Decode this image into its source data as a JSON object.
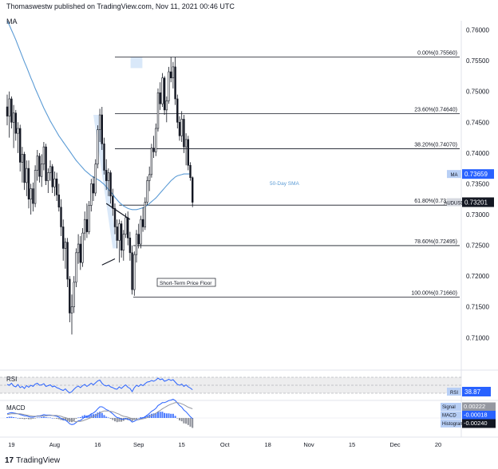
{
  "header": {
    "published": "Thomaswestw published on TradingView.com, Nov 11, 2021 00:46 UTC",
    "panel_label": "MA"
  },
  "footer": {
    "logo_mark": "17",
    "brand": "TradingView"
  },
  "colors": {
    "candle": "#131722",
    "sma": "#5b9bd5",
    "fib": "#131722",
    "fill": "#cfe2f7",
    "rsi": "#2962ff",
    "macd": "#2962ff",
    "signal": "#9598a1",
    "hist_pos": "#2962ff",
    "hist_neg": "#787b86",
    "badge_blue": "#2962ff",
    "badge_dark": "#131722"
  },
  "chart_data": {
    "type": "candlestick",
    "symbol": "AUDUSD",
    "ylim": [
      0.7055,
      0.7615
    ],
    "y_ticks": [
      "0.76000",
      "0.75500",
      "0.75000",
      "0.74500",
      "0.74000",
      "0.73500",
      "0.73000",
      "0.72500",
      "0.72000",
      "0.71500",
      "0.71000"
    ],
    "y_tick_values": [
      0.76,
      0.755,
      0.75,
      0.745,
      0.74,
      0.735,
      0.73,
      0.725,
      0.72,
      0.715,
      0.71
    ],
    "x_ticks": [
      "19",
      "Aug",
      "16",
      "Sep",
      "15",
      "Oct",
      "18",
      "Nov",
      "15",
      "Dec",
      "20"
    ],
    "x_tick_index": [
      2,
      22,
      42,
      61,
      81,
      101,
      121,
      140,
      160,
      180,
      200
    ],
    "candles": [
      [
        0.7475,
        0.7495,
        0.7445,
        0.746
      ],
      [
        0.746,
        0.75,
        0.7425,
        0.7488
      ],
      [
        0.7488,
        0.7492,
        0.744,
        0.745
      ],
      [
        0.745,
        0.7478,
        0.7408,
        0.7465
      ],
      [
        0.7465,
        0.747,
        0.742,
        0.7432
      ],
      [
        0.7432,
        0.745,
        0.74,
        0.744
      ],
      [
        0.744,
        0.7446,
        0.737,
        0.7385
      ],
      [
        0.7385,
        0.741,
        0.7352,
        0.7398
      ],
      [
        0.7398,
        0.7402,
        0.734,
        0.7352
      ],
      [
        0.7352,
        0.7388,
        0.733,
        0.7375
      ],
      [
        0.7375,
        0.7388,
        0.731,
        0.7325
      ],
      [
        0.7325,
        0.735,
        0.73,
        0.7342
      ],
      [
        0.7342,
        0.7352,
        0.7305,
        0.7318
      ],
      [
        0.7318,
        0.738,
        0.7312,
        0.7372
      ],
      [
        0.7372,
        0.7405,
        0.7355,
        0.7395
      ],
      [
        0.7395,
        0.74,
        0.7352,
        0.7362
      ],
      [
        0.7362,
        0.7398,
        0.7345,
        0.7382
      ],
      [
        0.7382,
        0.7418,
        0.7372,
        0.741
      ],
      [
        0.741,
        0.7415,
        0.7348,
        0.7355
      ],
      [
        0.7355,
        0.7375,
        0.7335,
        0.7368
      ],
      [
        0.7368,
        0.7388,
        0.7355,
        0.7378
      ],
      [
        0.7378,
        0.7382,
        0.7335,
        0.7345
      ],
      [
        0.7345,
        0.737,
        0.733,
        0.7358
      ],
      [
        0.7358,
        0.7368,
        0.7322,
        0.7332
      ],
      [
        0.7332,
        0.735,
        0.7305,
        0.7312
      ],
      [
        0.7312,
        0.7325,
        0.7265,
        0.728
      ],
      [
        0.728,
        0.7292,
        0.7225,
        0.7245
      ],
      [
        0.7245,
        0.7262,
        0.7212,
        0.7255
      ],
      [
        0.7255,
        0.7262,
        0.7182,
        0.7195
      ],
      [
        0.7195,
        0.72,
        0.7125,
        0.714
      ],
      [
        0.714,
        0.717,
        0.7105,
        0.715
      ],
      [
        0.715,
        0.72,
        0.714,
        0.719
      ],
      [
        0.719,
        0.7245,
        0.7182,
        0.7238
      ],
      [
        0.7238,
        0.7268,
        0.722,
        0.7252
      ],
      [
        0.7252,
        0.7265,
        0.721,
        0.7222
      ],
      [
        0.7222,
        0.7278,
        0.7215,
        0.727
      ],
      [
        0.727,
        0.7305,
        0.7258,
        0.7292
      ],
      [
        0.7292,
        0.7318,
        0.7262,
        0.7272
      ],
      [
        0.7272,
        0.7322,
        0.7268,
        0.7315
      ],
      [
        0.7315,
        0.7358,
        0.7305,
        0.735
      ],
      [
        0.735,
        0.7362,
        0.7322,
        0.7335
      ],
      [
        0.7335,
        0.739,
        0.733,
        0.7382
      ],
      [
        0.7382,
        0.7445,
        0.7375,
        0.7438
      ],
      [
        0.7438,
        0.7472,
        0.7418,
        0.7462
      ],
      [
        0.7462,
        0.7475,
        0.7405,
        0.7415
      ],
      [
        0.7415,
        0.7425,
        0.7365,
        0.7372
      ],
      [
        0.7372,
        0.739,
        0.734,
        0.7355
      ],
      [
        0.7355,
        0.7375,
        0.733,
        0.7368
      ],
      [
        0.7368,
        0.7372,
        0.7318,
        0.733
      ],
      [
        0.733,
        0.7342,
        0.7298,
        0.731
      ],
      [
        0.731,
        0.7318,
        0.7268,
        0.728
      ],
      [
        0.728,
        0.7292,
        0.7245,
        0.7258
      ],
      [
        0.7258,
        0.7292,
        0.7222,
        0.7285
      ],
      [
        0.7285,
        0.729,
        0.723,
        0.7242
      ],
      [
        0.7242,
        0.7275,
        0.7225,
        0.7268
      ],
      [
        0.7268,
        0.7302,
        0.7262,
        0.7295
      ],
      [
        0.7295,
        0.7305,
        0.725,
        0.7262
      ],
      [
        0.7262,
        0.7272,
        0.7225,
        0.7238
      ],
      [
        0.7238,
        0.725,
        0.717,
        0.7178
      ],
      [
        0.7178,
        0.724,
        0.7168,
        0.7235
      ],
      [
        0.7235,
        0.7275,
        0.7222,
        0.7268
      ],
      [
        0.7268,
        0.7285,
        0.7245,
        0.7252
      ],
      [
        0.7252,
        0.7298,
        0.7245,
        0.7292
      ],
      [
        0.7292,
        0.7312,
        0.7272,
        0.728
      ],
      [
        0.728,
        0.7328,
        0.7275,
        0.732
      ],
      [
        0.732,
        0.7362,
        0.7315,
        0.7355
      ],
      [
        0.7355,
        0.7378,
        0.7338,
        0.7365
      ],
      [
        0.7365,
        0.7415,
        0.736,
        0.7408
      ],
      [
        0.7408,
        0.7428,
        0.7392,
        0.7402
      ],
      [
        0.7402,
        0.7448,
        0.7395,
        0.744
      ],
      [
        0.744,
        0.7505,
        0.7435,
        0.7498
      ],
      [
        0.7498,
        0.7515,
        0.747,
        0.748
      ],
      [
        0.748,
        0.753,
        0.7475,
        0.7522
      ],
      [
        0.7522,
        0.7525,
        0.7462,
        0.747
      ],
      [
        0.747,
        0.7492,
        0.745,
        0.7485
      ],
      [
        0.7485,
        0.754,
        0.748,
        0.7532
      ],
      [
        0.7532,
        0.7556,
        0.7515,
        0.7522
      ],
      [
        0.7522,
        0.7548,
        0.7505,
        0.754
      ],
      [
        0.754,
        0.7556,
        0.7478,
        0.7488
      ],
      [
        0.7488,
        0.7495,
        0.744,
        0.745
      ],
      [
        0.745,
        0.746,
        0.742,
        0.7428
      ],
      [
        0.7428,
        0.7468,
        0.7418,
        0.7455
      ],
      [
        0.7455,
        0.7462,
        0.74,
        0.741
      ],
      [
        0.741,
        0.7432,
        0.738,
        0.7422
      ],
      [
        0.7422,
        0.7428,
        0.7372,
        0.738
      ],
      [
        0.738,
        0.7385,
        0.7355,
        0.736
      ],
      [
        0.736,
        0.7362,
        0.7312,
        0.732
      ]
    ],
    "sma_50": [
      0.7615,
      0.7608,
      0.76,
      0.7592,
      0.7584,
      0.7575,
      0.7566,
      0.7557,
      0.7548,
      0.754,
      0.7531,
      0.7522,
      0.7514,
      0.7505,
      0.7497,
      0.7489,
      0.7481,
      0.7473,
      0.7466,
      0.7459,
      0.7452,
      0.7446,
      0.744,
      0.7434,
      0.7428,
      0.7423,
      0.7418,
      0.7413,
      0.7408,
      0.7403,
      0.7398,
      0.7393,
      0.7388,
      0.7384,
      0.738,
      0.7376,
      0.7372,
      0.7369,
      0.7366,
      0.7363,
      0.7361,
      0.7359,
      0.7357,
      0.7355,
      0.7352,
      0.7349,
      0.7345,
      0.7341,
      0.7337,
      0.7333,
      0.7328,
      0.7324,
      0.732,
      0.7317,
      0.7314,
      0.7312,
      0.731,
      0.7309,
      0.7308,
      0.7308,
      0.7308,
      0.7309,
      0.731,
      0.7311,
      0.7313,
      0.7315,
      0.7318,
      0.7321,
      0.7324,
      0.7327,
      0.7331,
      0.7335,
      0.7339,
      0.7343,
      0.7347,
      0.7351,
      0.7355,
      0.7358,
      0.7361,
      0.7363,
      0.7364,
      0.7365,
      0.7366,
      0.7366,
      0.7366,
      0.7366
    ],
    "fib_levels": [
      {
        "label": "0.00%(0.75560)",
        "value": 0.7556
      },
      {
        "label": "23.60%(0.74640)",
        "value": 0.7464
      },
      {
        "label": "38.20%(0.74070)",
        "value": 0.7407
      },
      {
        "label": "61.80%(0.73153)",
        "value": 0.73153
      },
      {
        "label": "78.60%(0.72495)",
        "value": 0.72495
      },
      {
        "label": "100.00%(0.71660)",
        "value": 0.7166
      }
    ],
    "annotations": {
      "sma_label": "50-Day SMA",
      "floor_label": "Short-Term Price Floor"
    },
    "badges": [
      {
        "tag": "MA",
        "value": "0.73659",
        "price": 0.73659
      },
      {
        "tag": "AUDUSD",
        "value": "0.73201",
        "price": 0.73201
      }
    ],
    "rsi": {
      "label": "RSI",
      "value": "38.87",
      "values": [
        52,
        50,
        55,
        48,
        46,
        52,
        44,
        47,
        42,
        49,
        45,
        50,
        47,
        53,
        55,
        50,
        51,
        54,
        47,
        49,
        51,
        46,
        48,
        44,
        42,
        39,
        37,
        41,
        35,
        31,
        34,
        40,
        45,
        48,
        44,
        49,
        52,
        47,
        51,
        55,
        51,
        56,
        61,
        63,
        55,
        50,
        48,
        50,
        46,
        44,
        41,
        40,
        46,
        42,
        47,
        51,
        45,
        42,
        34,
        44,
        50,
        47,
        52,
        49,
        54,
        58,
        59,
        62,
        60,
        63,
        68,
        64,
        66,
        60,
        62,
        65,
        62,
        64,
        58,
        52,
        50,
        53,
        47,
        51,
        46,
        43,
        38.87
      ],
      "ylim": [
        20,
        80
      ]
    },
    "macd": {
      "label": "MACD",
      "legend": [
        {
          "name": "Signal",
          "value": "0.00222"
        },
        {
          "name": "MACD",
          "value": "-0.00018"
        },
        {
          "name": "Histogram",
          "value": "-0.00240"
        }
      ],
      "macd_values": [
        0.001,
        0.0012,
        0.0013,
        0.0012,
        0.0011,
        0.001,
        0.0008,
        0.0007,
        0.0005,
        0.0005,
        0.0003,
        0.0002,
        0.0002,
        0.0003,
        0.0005,
        0.0005,
        0.0006,
        0.0008,
        0.0007,
        0.0007,
        0.0007,
        0.0006,
        0.0005,
        0.0004,
        0.0002,
        -0.0001,
        -0.0004,
        -0.0005,
        -0.0009,
        -0.0014,
        -0.0016,
        -0.0015,
        -0.0011,
        -0.0007,
        -0.0006,
        -0.0002,
        0.0002,
        0.0003,
        0.0006,
        0.001,
        0.0012,
        0.0016,
        0.0022,
        0.0027,
        0.0027,
        0.0024,
        0.002,
        0.0018,
        0.0014,
        0.001,
        0.0005,
        0.0001,
        0.0,
        -0.0003,
        -0.0003,
        -0.0001,
        -0.0003,
        -0.0005,
        -0.001,
        -0.0008,
        -0.0005,
        -0.0004,
        -0.0001,
        0.0,
        0.0003,
        0.0007,
        0.0011,
        0.0016,
        0.0019,
        0.0023,
        0.003,
        0.0033,
        0.0037,
        0.0037,
        0.0039,
        0.0042,
        0.0043,
        0.0045,
        0.0042,
        0.0036,
        0.003,
        0.0026,
        0.0019,
        0.0015,
        0.0009,
        0.0003,
        -0.00018
      ],
      "signal_values": [
        0.0008,
        0.0009,
        0.001,
        0.001,
        0.001,
        0.001,
        0.001,
        0.0009,
        0.0008,
        0.0007,
        0.0006,
        0.0005,
        0.0004,
        0.0004,
        0.0004,
        0.0004,
        0.0004,
        0.0005,
        0.0005,
        0.0006,
        0.0006,
        0.0006,
        0.0006,
        0.0006,
        0.0005,
        0.0004,
        0.0002,
        0.0001,
        -0.0001,
        -0.0004,
        -0.0006,
        -0.0008,
        -0.0009,
        -0.0008,
        -0.0008,
        -0.0007,
        -0.0005,
        -0.0003,
        -0.0001,
        0.0001,
        0.0003,
        0.0006,
        0.0009,
        0.0012,
        0.0015,
        0.0017,
        0.0017,
        0.0017,
        0.0016,
        0.0015,
        0.0013,
        0.0011,
        0.0009,
        0.0006,
        0.0004,
        0.0003,
        0.0002,
        0.0,
        -0.0002,
        -0.0003,
        -0.0003,
        -0.0004,
        -0.0003,
        -0.0002,
        -0.0001,
        0.0001,
        0.0003,
        0.0006,
        0.0008,
        0.0011,
        0.0015,
        0.0018,
        0.0022,
        0.0025,
        0.0028,
        0.0031,
        0.0033,
        0.0035,
        0.0037,
        0.0037,
        0.0036,
        0.0034,
        0.0032,
        0.0029,
        0.0026,
        0.0024,
        0.00222
      ]
    }
  }
}
